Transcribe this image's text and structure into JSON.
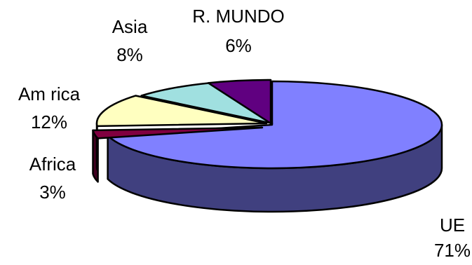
{
  "chart_data": {
    "type": "pie",
    "style": "3d-exploded",
    "title": "",
    "start_angle_deg": -90,
    "direction": "clockwise",
    "slices": [
      {
        "label": "UE",
        "value": 71,
        "value_label": "71%",
        "color": "#8080ff",
        "side_color": "#40407f"
      },
      {
        "label": "Africa",
        "value": 3,
        "value_label": "3%",
        "color": "#800040",
        "side_color": "#400020"
      },
      {
        "label": "Am rica",
        "value": 12,
        "value_label": "12%",
        "color": "#ffffc0",
        "side_color": "#c0c090"
      },
      {
        "label": "Asia",
        "value": 8,
        "value_label": "8%",
        "color": "#a0e0e0",
        "side_color": "#609090"
      },
      {
        "label": "R. MUNDO",
        "value": 6,
        "value_label": "6%",
        "color": "#600080",
        "side_color": "#300040"
      }
    ]
  }
}
